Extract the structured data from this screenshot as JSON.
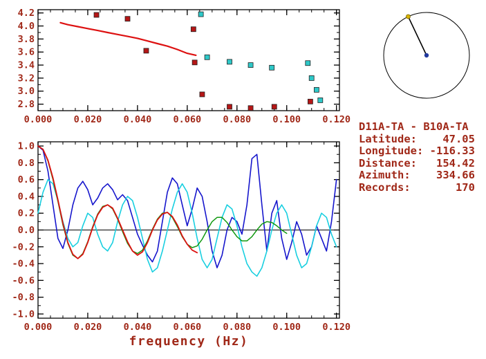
{
  "style": {
    "text_color": "#a02818",
    "axis_color": "#000000",
    "background": "#ffffff"
  },
  "info_panel": {
    "title": "D11A-TA - B10A-TA",
    "lines": [
      "Latitude:    47.05",
      "Longitude: -116.33",
      "Distance:   154.42",
      "Azimuth:    334.66",
      "Records:       170"
    ]
  },
  "azimuth_panel": {
    "azimuth_deg": 334.66,
    "circle_color": "#000000",
    "station_dot_color": "#223a9e",
    "source_dot_color": "#d8b200"
  },
  "chart_data": [
    {
      "id": "dispersion",
      "type": "scatter",
      "title": "",
      "xlabel": "",
      "ylabel": "",
      "xlim": [
        0,
        0.1212
      ],
      "ylim": [
        2.7,
        4.25
      ],
      "x_minor_step": 0.005,
      "y_minor_step": 0.1,
      "xticks": {
        "values": [
          0,
          0.02,
          0.04,
          0.06,
          0.08,
          0.1,
          0.12
        ],
        "labels": [
          "0.000",
          "0.020",
          "0.040",
          "0.060",
          "0.080",
          "0.100",
          "0.120"
        ]
      },
      "yticks": {
        "values": [
          2.8,
          3.0,
          3.2,
          3.4,
          3.6,
          3.8,
          4.0,
          4.2
        ],
        "labels": [
          "2.8",
          "3.0",
          "3.2",
          "3.4",
          "3.6",
          "3.8",
          "4.0",
          "4.2"
        ]
      },
      "series": [
        {
          "name": "dispersion-model-curve",
          "kind": "line",
          "color": "#dd1111",
          "width": 2.2,
          "x": [
            0.009,
            0.012,
            0.016,
            0.02,
            0.024,
            0.028,
            0.032,
            0.036,
            0.04,
            0.044,
            0.048,
            0.052,
            0.056,
            0.06,
            0.0635
          ],
          "y": [
            4.05,
            4.02,
            3.99,
            3.96,
            3.93,
            3.9,
            3.87,
            3.84,
            3.81,
            3.77,
            3.73,
            3.69,
            3.64,
            3.58,
            3.55
          ]
        },
        {
          "name": "group-velocity-picks-red",
          "kind": "scatter",
          "marker": "square",
          "color": "#b51616",
          "size": 7,
          "points": [
            [
              0.0235,
              4.17
            ],
            [
              0.036,
              4.11
            ],
            [
              0.0435,
              3.62
            ],
            [
              0.0625,
              3.95
            ],
            [
              0.063,
              3.44
            ],
            [
              0.066,
              2.95
            ],
            [
              0.077,
              2.76
            ],
            [
              0.0855,
              2.74
            ],
            [
              0.095,
              2.76
            ],
            [
              0.1095,
              2.84
            ]
          ]
        },
        {
          "name": "phase-velocity-picks-cyan",
          "kind": "scatter",
          "marker": "square",
          "color": "#2ec8c8",
          "size": 7,
          "points": [
            [
              0.0655,
              4.18
            ],
            [
              0.068,
              3.52
            ],
            [
              0.077,
              3.45
            ],
            [
              0.0855,
              3.4
            ],
            [
              0.094,
              3.36
            ],
            [
              0.1085,
              3.43
            ],
            [
              0.11,
              3.2
            ],
            [
              0.112,
              3.02
            ],
            [
              0.1135,
              2.86
            ]
          ]
        }
      ]
    },
    {
      "id": "spectra",
      "type": "line",
      "title": "",
      "xlabel": "frequency (Hz)",
      "ylabel": "",
      "xlim": [
        0,
        0.1212
      ],
      "ylim": [
        -1.05,
        1.05
      ],
      "zero_line": true,
      "x_minor_step": 0.005,
      "y_minor_step": 0.1,
      "xticks": {
        "values": [
          0,
          0.02,
          0.04,
          0.06,
          0.08,
          0.1,
          0.12
        ],
        "labels": [
          "0.000",
          "0.020",
          "0.040",
          "0.060",
          "0.080",
          "0.100",
          "0.120"
        ]
      },
      "yticks": {
        "values": [
          -1,
          -0.8,
          -0.6,
          -0.4,
          -0.2,
          0,
          0.2,
          0.4,
          0.6,
          0.8,
          1
        ],
        "labels": [
          "-1.0",
          "-0.8",
          "-0.6",
          "-0.4",
          "-0.2",
          "0.0",
          "0.2",
          "0.4",
          "0.6",
          "0.8",
          "1.0"
        ]
      },
      "series": [
        {
          "name": "observed-spectrum-blue",
          "kind": "line",
          "color": "#1515cc",
          "width": 1.6,
          "x0": 0,
          "dx": 0.002,
          "y": [
            1,
            0.95,
            0.7,
            0.3,
            -0.1,
            -0.22,
            0,
            0.3,
            0.5,
            0.58,
            0.48,
            0.3,
            0.38,
            0.5,
            0.55,
            0.48,
            0.36,
            0.42,
            0.35,
            0.15,
            -0.05,
            -0.18,
            -0.3,
            -0.38,
            -0.25,
            0.1,
            0.45,
            0.62,
            0.55,
            0.3,
            0.05,
            0.25,
            0.5,
            0.4,
            0.1,
            -0.25,
            -0.45,
            -0.3,
            0,
            0.15,
            0.1,
            -0.05,
            0.3,
            0.85,
            0.9,
            0.3,
            -0.25,
            0.2,
            0.35,
            -0.1,
            -0.35,
            -0.15,
            0.1,
            -0.05,
            -0.3,
            -0.2,
            0.05,
            -0.1,
            -0.25,
            0.1,
            0.6
          ]
        },
        {
          "name": "observed-spectrum-cyan",
          "kind": "line",
          "color": "#18cfe0",
          "width": 1.6,
          "x0": 0,
          "dx": 0.002,
          "y": [
            0.2,
            0.45,
            0.6,
            0.55,
            0.35,
            0.1,
            -0.1,
            -0.2,
            -0.15,
            0.05,
            0.2,
            0.15,
            -0.05,
            -0.2,
            -0.25,
            -0.15,
            0.1,
            0.3,
            0.4,
            0.35,
            0.15,
            -0.1,
            -0.35,
            -0.5,
            -0.45,
            -0.25,
            0,
            0.25,
            0.45,
            0.55,
            0.45,
            0.2,
            -0.1,
            -0.35,
            -0.45,
            -0.35,
            -0.1,
            0.15,
            0.3,
            0.25,
            0.05,
            -0.2,
            -0.4,
            -0.5,
            -0.55,
            -0.45,
            -0.25,
            0,
            0.2,
            0.3,
            0.2,
            -0.05,
            -0.3,
            -0.45,
            -0.4,
            -0.2,
            0.05,
            0.2,
            0.15,
            -0.05,
            -0.2
          ]
        },
        {
          "name": "model-spectrum-green",
          "kind": "line",
          "color": "#119911",
          "width": 1.5,
          "x0": 0,
          "dx": 0.002,
          "y": [
            1,
            0.96,
            0.82,
            0.6,
            0.34,
            0.06,
            -0.16,
            -0.3,
            -0.34,
            -0.28,
            -0.14,
            0.04,
            0.19,
            0.28,
            0.3,
            0.25,
            0.13,
            -0.02,
            -0.16,
            -0.25,
            -0.28,
            -0.24,
            -0.13,
            0.01,
            0.13,
            0.2,
            0.21,
            0.15,
            0.04,
            -0.08,
            -0.17,
            -0.21,
            -0.19,
            -0.11,
            0,
            0.1,
            0.15,
            0.15,
            0.09,
            0,
            -0.08,
            -0.13,
            -0.13,
            -0.08,
            0,
            0.07,
            0.1,
            0.09,
            0.05,
            0,
            -0.04
          ]
        },
        {
          "name": "model-spectrum-red",
          "kind": "line",
          "color": "#dd1111",
          "width": 1.8,
          "x0": 0,
          "dx": 0.002,
          "y": [
            1,
            0.96,
            0.83,
            0.62,
            0.36,
            0.08,
            -0.15,
            -0.29,
            -0.34,
            -0.29,
            -0.15,
            0.03,
            0.18,
            0.27,
            0.3,
            0.26,
            0.14,
            0,
            -0.14,
            -0.25,
            -0.3,
            -0.26,
            -0.15,
            0,
            0.12,
            0.19,
            0.21,
            0.16,
            0.06,
            -0.07,
            -0.17,
            -0.24,
            -0.27
          ]
        }
      ]
    }
  ]
}
